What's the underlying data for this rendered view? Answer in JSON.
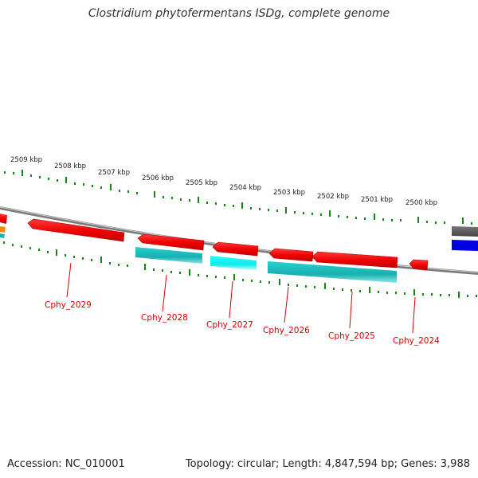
{
  "header": {
    "title": "Clostridium phytofermentans ISDg, complete genome"
  },
  "footer": {
    "accession": "Accession: NC_010001",
    "stats": "Topology: circular; Length: 4,847,594 bp; Genes: 3,988"
  },
  "scale_labels": [
    "2509 kbp",
    "2508 kbp",
    "2507 kbp",
    "2506 kbp",
    "2505 kbp",
    "2504 kbp",
    "2503 kbp",
    "2502 kbp",
    "2501 kbp",
    "2500 kbp"
  ],
  "gene_labels": [
    "Cphy_2029",
    "Cphy_2028",
    "Cphy_2027",
    "Cphy_2026",
    "Cphy_2025",
    "Cphy_2024"
  ],
  "colors": {
    "cds": "#ee0000",
    "orf_a": "#18b5b5",
    "orf_b": "#22ffff",
    "rna_gray": "#666666",
    "blue_feature": "#0000e0",
    "backbone": "#888888",
    "ticks": "#118811",
    "label_text": "#d40000"
  }
}
